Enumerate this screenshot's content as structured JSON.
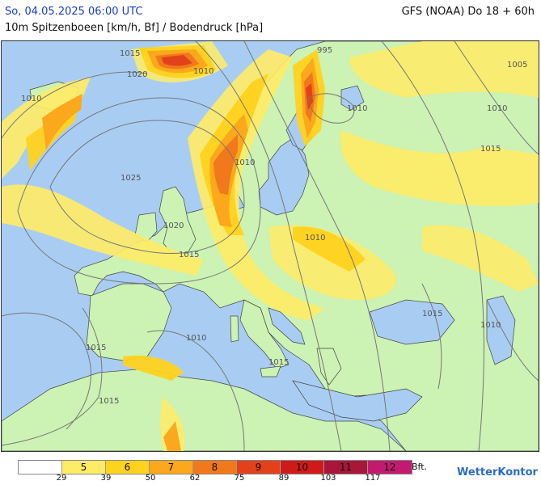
{
  "header": {
    "datetime": "So, 04.05.2025 06:00 UTC",
    "model_run": "GFS (NOAA) Do 18 + 60h",
    "parameter": "10m Spitzenboeen [km/h, Bf] / Bodendruck [hPa]"
  },
  "map": {
    "isobar_labels": [
      "1015",
      "1020",
      "1010",
      "1010",
      "995",
      "1005",
      "1010",
      "1015",
      "1010",
      "1025",
      "1010",
      "1020",
      "1015",
      "1010",
      "1015",
      "1015",
      "1010",
      "1010",
      "1015",
      "1015"
    ],
    "colors": {
      "sea": "#a9cdf2",
      "land": "#ccf2b4",
      "gust_5": "#ffec66",
      "gust_6": "#ffd21e",
      "gust_7": "#fba81c",
      "gust_8": "#f2781c",
      "gust_9": "#e2411a",
      "isobar": "#777777",
      "border": "#333333"
    }
  },
  "legend": {
    "unit_label": "Bft.",
    "classes": [
      {
        "label": "",
        "color": "#ffffff"
      },
      {
        "label": "5",
        "color": "#ffec66"
      },
      {
        "label": "6",
        "color": "#ffd21e"
      },
      {
        "label": "7",
        "color": "#fba81c"
      },
      {
        "label": "8",
        "color": "#f2781c"
      },
      {
        "label": "9",
        "color": "#e2411a"
      },
      {
        "label": "10",
        "color": "#d01a1a"
      },
      {
        "label": "11",
        "color": "#a8163a"
      },
      {
        "label": "12",
        "color": "#c21a6e"
      }
    ],
    "kmh_ticks": [
      "29",
      "39",
      "50",
      "62",
      "75",
      "89",
      "103",
      "117"
    ]
  },
  "branding": {
    "logo_text": "WetterKontor"
  }
}
